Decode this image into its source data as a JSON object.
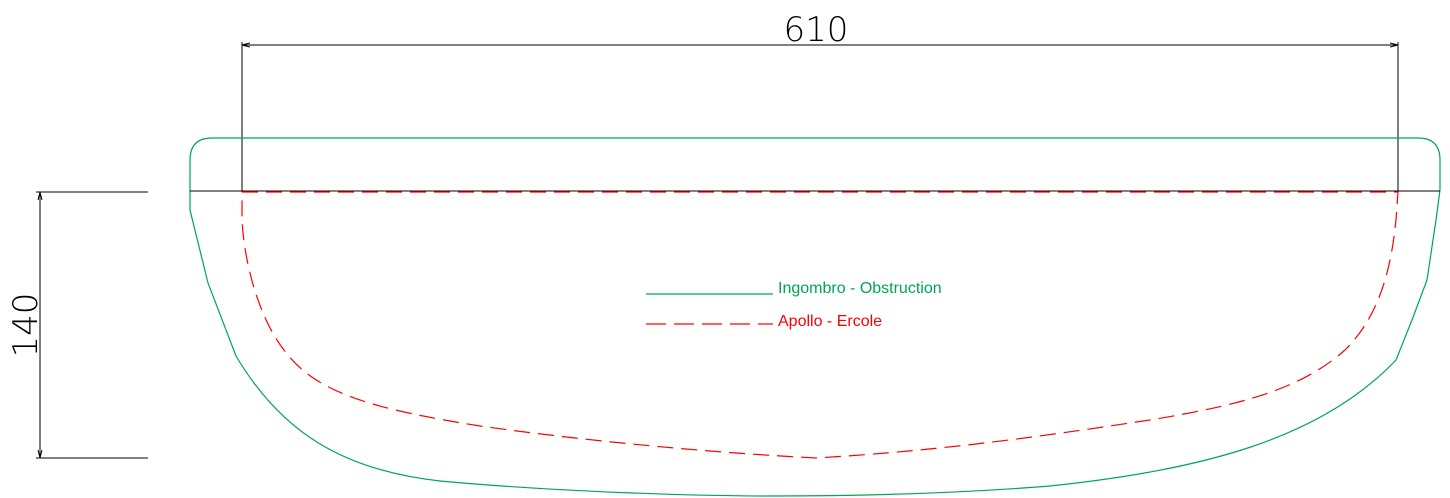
{
  "dimensions": {
    "width_label": "610",
    "height_label": "140"
  },
  "legend": {
    "items": [
      {
        "label": "Ingombro - Obstruction",
        "color": "#00a651",
        "style": "solid"
      },
      {
        "label": "Apollo - Ercole",
        "color": "#ff0000",
        "style": "dashed"
      }
    ]
  },
  "colors": {
    "dimension": "#000000",
    "obstruction": "#00a651",
    "profile": "#ff0000"
  }
}
